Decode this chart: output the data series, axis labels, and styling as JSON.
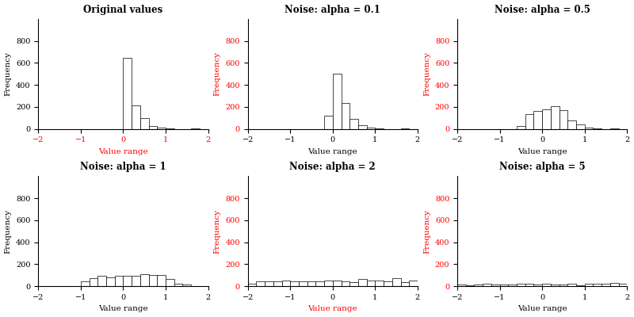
{
  "titles": [
    "Original values",
    "Noise: alpha = 0.1",
    "Noise: alpha = 0.5",
    "Noise: alpha = 1",
    "Noise: alpha = 2",
    "Noise: alpha = 5"
  ],
  "alphas": [
    0.0,
    0.1,
    0.5,
    1.0,
    2.0,
    5.0
  ],
  "xlabel": "Value range",
  "ylabel": "Frequency",
  "xlim": [
    -2,
    2
  ],
  "ylim": [
    0,
    1000
  ],
  "yticks": [
    0,
    200,
    400,
    600,
    800
  ],
  "xticks": [
    -2,
    -1,
    0,
    1,
    2
  ],
  "n_bins": 20,
  "seed": 42,
  "n_samples": 1000,
  "background_color": "#ffffff",
  "bar_color": "white",
  "bar_edgecolor": "black",
  "title_fontsize": 8.5,
  "label_fontsize": 7.5,
  "tick_fontsize": 7,
  "figsize": [
    8.0,
    4.0
  ],
  "dpi": 100,
  "ylabel_colors": [
    "black",
    "red",
    "red",
    "black",
    "red",
    "red"
  ],
  "xlabel_colors": [
    "red",
    "black",
    "black",
    "black",
    "red",
    "black"
  ]
}
